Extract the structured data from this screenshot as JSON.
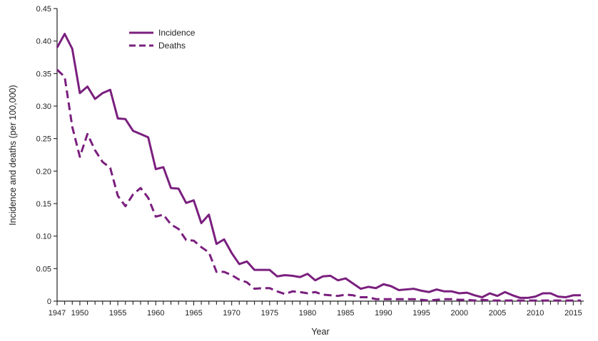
{
  "chart_data": {
    "type": "line",
    "title": "",
    "xlabel": "Year",
    "ylabel": "Incidence and deaths (per 100,000)",
    "xlim": [
      1947,
      2016
    ],
    "ylim": [
      0,
      0.45
    ],
    "y_ticks": [
      "0",
      "0.05",
      "0.10",
      "0.15",
      "0.20",
      "0.25",
      "0.30",
      "0.35",
      "0.40",
      "0.45"
    ],
    "x_tick_labels": [
      "1947",
      "1950",
      "1955",
      "1960",
      "1965",
      "1970",
      "1975",
      "1980",
      "1985",
      "1990",
      "1995",
      "2000",
      "2005",
      "2010",
      "2015"
    ],
    "grid": false,
    "legend": {
      "position": "top-left"
    },
    "x": [
      1947,
      1948,
      1949,
      1950,
      1951,
      1952,
      1953,
      1954,
      1955,
      1956,
      1957,
      1958,
      1959,
      1960,
      1961,
      1962,
      1963,
      1964,
      1965,
      1966,
      1967,
      1968,
      1969,
      1970,
      1971,
      1972,
      1973,
      1974,
      1975,
      1976,
      1977,
      1978,
      1979,
      1980,
      1981,
      1982,
      1983,
      1984,
      1985,
      1986,
      1987,
      1988,
      1989,
      1990,
      1991,
      1992,
      1993,
      1994,
      1995,
      1996,
      1997,
      1998,
      1999,
      2000,
      2001,
      2002,
      2003,
      2004,
      2005,
      2006,
      2007,
      2008,
      2009,
      2010,
      2011,
      2012,
      2013,
      2014,
      2015,
      2016
    ],
    "series": [
      {
        "name": "Incidence",
        "style": "solid",
        "color": "#7a1f7e",
        "values": [
          0.39,
          0.411,
          0.388,
          0.32,
          0.33,
          0.311,
          0.32,
          0.325,
          0.281,
          0.28,
          0.262,
          0.257,
          0.252,
          0.203,
          0.206,
          0.174,
          0.173,
          0.151,
          0.155,
          0.12,
          0.133,
          0.088,
          0.095,
          0.074,
          0.057,
          0.061,
          0.048,
          0.048,
          0.048,
          0.038,
          0.04,
          0.039,
          0.037,
          0.042,
          0.032,
          0.038,
          0.039,
          0.032,
          0.035,
          0.027,
          0.019,
          0.022,
          0.02,
          0.026,
          0.023,
          0.017,
          0.018,
          0.019,
          0.016,
          0.014,
          0.018,
          0.015,
          0.015,
          0.012,
          0.013,
          0.009,
          0.006,
          0.012,
          0.008,
          0.014,
          0.009,
          0.005,
          0.005,
          0.007,
          0.012,
          0.012,
          0.007,
          0.006,
          0.009,
          0.009
        ]
      },
      {
        "name": "Deaths",
        "style": "dashed",
        "color": "#7a1f7e",
        "values": [
          0.356,
          0.345,
          0.268,
          0.222,
          0.257,
          0.232,
          0.214,
          0.205,
          0.162,
          0.146,
          0.164,
          0.174,
          0.159,
          0.13,
          0.133,
          0.118,
          0.111,
          0.094,
          0.093,
          0.083,
          0.075,
          0.045,
          0.045,
          0.04,
          0.033,
          0.029,
          0.019,
          0.02,
          0.02,
          0.015,
          0.011,
          0.015,
          0.014,
          0.012,
          0.014,
          0.01,
          0.009,
          0.008,
          0.01,
          0.009,
          0.006,
          0.006,
          0.003,
          0.003,
          0.003,
          0.003,
          0.003,
          0.003,
          0.002,
          0.001,
          0.002,
          0.003,
          0.003,
          0.002,
          0.002,
          0.001,
          0.002,
          0.001,
          0.001,
          0.001,
          0.001,
          0.001,
          0.001,
          0.001,
          0.001,
          0.001,
          0.001,
          0.001,
          0.001,
          0.001
        ]
      }
    ]
  }
}
